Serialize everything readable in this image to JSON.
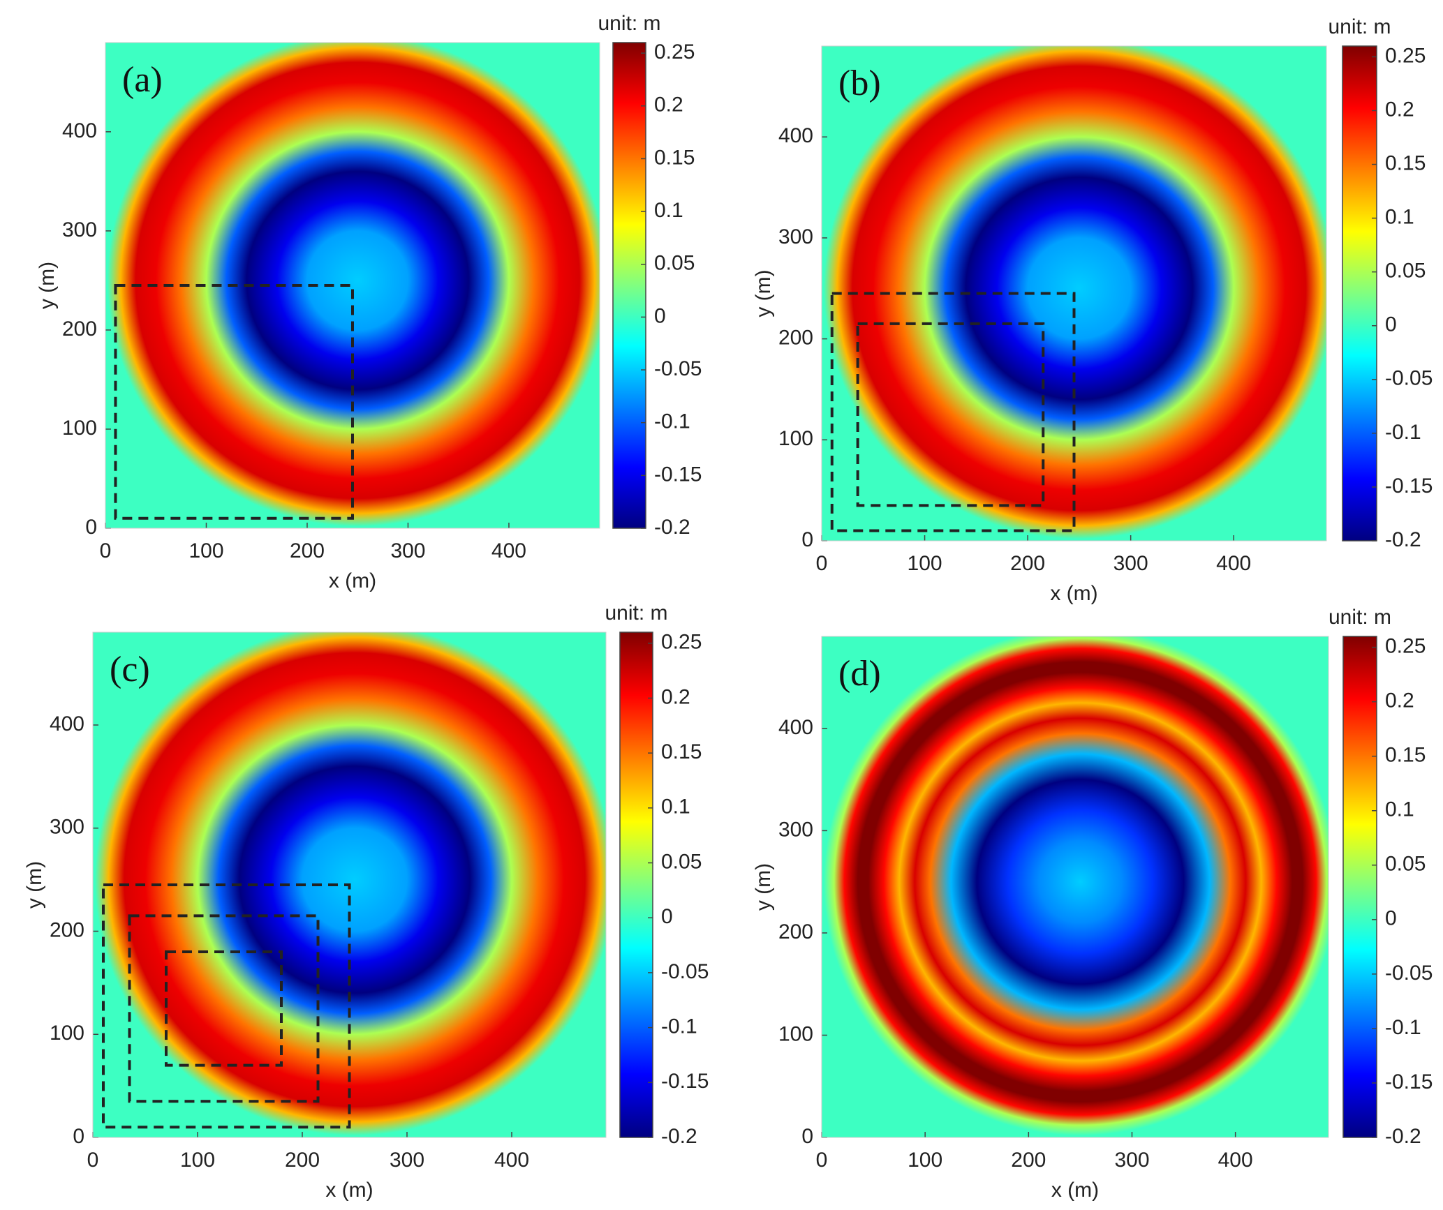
{
  "chart_data": [
    {
      "type": "heatmap",
      "panel_label": "(a)",
      "xlabel": "x (m)",
      "ylabel": "y (m)",
      "xlim": [
        0,
        490
      ],
      "ylim": [
        0,
        490
      ],
      "xticks": [
        0,
        100,
        200,
        300,
        400
      ],
      "yticks": [
        0,
        100,
        200,
        300,
        400
      ],
      "colorbar_title": "unit: m",
      "colormap": "jet",
      "clim": [
        -0.2,
        0.26
      ],
      "cticks": [
        -0.2,
        -0.15,
        -0.1,
        -0.05,
        0,
        0.05,
        0.1,
        0.15,
        0.2,
        0.25
      ],
      "center": [
        250,
        250
      ],
      "background": 0,
      "profile": {
        "r": [
          0,
          50,
          80,
          110,
          130,
          150,
          175,
          200,
          220,
          235,
          248
        ],
        "values": [
          -0.05,
          -0.07,
          -0.15,
          -0.2,
          -0.1,
          0.05,
          0.15,
          0.21,
          0.22,
          0.12,
          0
        ]
      },
      "boxes": [
        [
          10,
          10,
          245,
          245
        ]
      ]
    },
    {
      "type": "heatmap",
      "panel_label": "(b)",
      "xlabel": "x (m)",
      "ylabel": "y (m)",
      "xlim": [
        0,
        490
      ],
      "ylim": [
        0,
        490
      ],
      "xticks": [
        0,
        100,
        200,
        300,
        400
      ],
      "yticks": [
        0,
        100,
        200,
        300,
        400
      ],
      "colorbar_title": "unit: m",
      "colormap": "jet",
      "clim": [
        -0.2,
        0.26
      ],
      "cticks": [
        -0.2,
        -0.15,
        -0.1,
        -0.05,
        0,
        0.05,
        0.1,
        0.15,
        0.2,
        0.25
      ],
      "center": [
        250,
        250
      ],
      "background": 0,
      "profile": {
        "r": [
          0,
          50,
          80,
          110,
          130,
          150,
          175,
          200,
          220,
          235,
          248
        ],
        "values": [
          -0.05,
          -0.07,
          -0.15,
          -0.2,
          -0.1,
          0.05,
          0.15,
          0.21,
          0.22,
          0.12,
          0
        ]
      },
      "boxes": [
        [
          10,
          10,
          245,
          245
        ],
        [
          35,
          35,
          215,
          215
        ]
      ]
    },
    {
      "type": "heatmap",
      "panel_label": "(c)",
      "xlabel": "x (m)",
      "ylabel": "y (m)",
      "xlim": [
        0,
        490
      ],
      "ylim": [
        0,
        490
      ],
      "xticks": [
        0,
        100,
        200,
        300,
        400
      ],
      "yticks": [
        0,
        100,
        200,
        300,
        400
      ],
      "colorbar_title": "unit: m",
      "colormap": "jet",
      "clim": [
        -0.2,
        0.26
      ],
      "cticks": [
        -0.2,
        -0.15,
        -0.1,
        -0.05,
        0,
        0.05,
        0.1,
        0.15,
        0.2,
        0.25
      ],
      "center": [
        250,
        250
      ],
      "background": 0,
      "profile": {
        "r": [
          0,
          50,
          80,
          110,
          130,
          150,
          175,
          200,
          220,
          235,
          248
        ],
        "values": [
          -0.05,
          -0.07,
          -0.15,
          -0.2,
          -0.1,
          0.05,
          0.15,
          0.21,
          0.22,
          0.12,
          0
        ]
      },
      "boxes": [
        [
          10,
          10,
          245,
          245
        ],
        [
          35,
          35,
          215,
          215
        ],
        [
          70,
          70,
          180,
          180
        ]
      ]
    },
    {
      "type": "heatmap",
      "panel_label": "(d)",
      "xlabel": "x (m)",
      "ylabel": "y (m)",
      "xlim": [
        0,
        490
      ],
      "ylim": [
        0,
        490
      ],
      "xticks": [
        0,
        100,
        200,
        300,
        400
      ],
      "yticks": [
        0,
        100,
        200,
        300,
        400
      ],
      "colorbar_title": "unit: m",
      "colormap": "jet",
      "clim": [
        -0.2,
        0.26
      ],
      "cticks": [
        -0.2,
        -0.15,
        -0.1,
        -0.05,
        0,
        0.05,
        0.1,
        0.15,
        0.2,
        0.25
      ],
      "center": [
        250,
        250
      ],
      "background": 0,
      "profile": {
        "r": [
          0,
          40,
          70,
          100,
          125,
          145,
          160,
          175,
          190,
          205,
          215,
          228,
          238,
          248
        ],
        "values": [
          -0.05,
          -0.08,
          -0.12,
          -0.2,
          -0.06,
          0.15,
          0.22,
          0.12,
          0.2,
          0.26,
          0.26,
          0.2,
          0.05,
          0
        ]
      },
      "boxes": []
    }
  ]
}
